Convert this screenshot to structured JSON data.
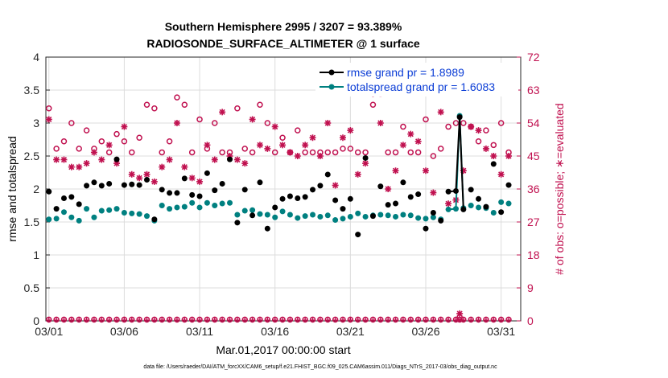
{
  "chart_data": {
    "type": "line",
    "title_line1": "Southern Hemisphere 2995 / 3207 = 93.389%",
    "title_line2": "RADIOSONDE_SURFACE_ALTIMETER @ 1 surface",
    "xlabel": "Mar.01,2017 00:00:00 start",
    "ylabel": "rmse and totalspread",
    "ylabel_right": "# of obs: o=possible; ∗=evaluated",
    "footer": "data file: /Users/raeder/DAI/ATM_forcXX/CAM6_setup/f.e21.FHIST_BGC.f09_025.CAM6assim.011/Diags_NTrS_2017-03/obs_diag_output.nc",
    "xlim": [
      0.8,
      32.3
    ],
    "ylim": [
      0,
      4
    ],
    "ylim_right": [
      0,
      72
    ],
    "x_tick_values": [
      1,
      6,
      11,
      16,
      21,
      26,
      31
    ],
    "x_tick_labels": [
      "03/01",
      "03/06",
      "03/11",
      "03/16",
      "03/21",
      "03/26",
      "03/31"
    ],
    "y_ticks": [
      "0",
      "0.5",
      "1",
      "1.5",
      "2",
      "2.5",
      "3",
      "3.5",
      "4"
    ],
    "y_ticks_right": [
      "0",
      "9",
      "18",
      "27",
      "36",
      "45",
      "54",
      "63",
      "72"
    ],
    "legend": [
      "rmse grand pr = 1.8989",
      "totalspread grand pr = 1.6083"
    ],
    "colors": {
      "rmse": "#000000",
      "spread": "#008080",
      "obs": "#c0104f",
      "legend_text": "#0b3dd6"
    },
    "x": [
      1.0,
      1.5,
      2.0,
      2.5,
      3.0,
      3.5,
      4.0,
      4.5,
      5.0,
      5.5,
      6.0,
      6.5,
      7.0,
      7.5,
      8.0,
      8.5,
      9.0,
      9.5,
      10.0,
      10.5,
      11.0,
      11.5,
      12.0,
      12.5,
      13.0,
      13.5,
      14.0,
      14.5,
      15.0,
      15.5,
      16.0,
      16.5,
      17.0,
      17.5,
      18.0,
      18.5,
      19.0,
      19.5,
      20.0,
      20.5,
      21.0,
      21.5,
      22.0,
      22.5,
      23.0,
      23.5,
      24.0,
      24.5,
      25.0,
      25.5,
      26.0,
      26.5,
      27.0,
      27.5,
      28.0,
      28.25,
      28.5,
      29.0,
      29.5,
      30.0,
      30.5,
      31.0,
      31.5
    ],
    "series": [
      {
        "name": "rmse",
        "values": [
          1.96,
          1.7,
          1.86,
          1.88,
          1.77,
          2.05,
          2.1,
          2.05,
          2.08,
          2.45,
          2.06,
          2.07,
          2.06,
          2.14,
          1.54,
          1.99,
          1.94,
          1.94,
          2.16,
          1.91,
          1.89,
          2.24,
          1.98,
          2.08,
          2.45,
          1.49,
          1.99,
          1.6,
          2.1,
          1.4,
          1.72,
          1.85,
          1.89,
          1.86,
          1.88,
          1.99,
          2.05,
          2.22,
          1.83,
          1.7,
          1.85,
          1.31,
          2.47,
          1.59,
          2.04,
          1.76,
          1.78,
          2.1,
          1.88,
          1.92,
          1.4,
          1.64,
          1.52,
          1.96,
          1.97,
          3.09,
          1.69,
          1.99,
          1.85,
          1.73,
          2.38,
          1.65,
          2.06
        ]
      },
      {
        "name": "totalspread",
        "values": [
          1.54,
          1.55,
          1.65,
          1.57,
          1.52,
          1.7,
          1.57,
          1.67,
          1.68,
          1.7,
          1.64,
          1.63,
          1.62,
          1.59,
          1.52,
          1.75,
          1.7,
          1.72,
          1.73,
          1.79,
          1.72,
          1.79,
          1.75,
          1.78,
          1.79,
          1.61,
          1.67,
          1.68,
          1.62,
          1.61,
          1.57,
          1.66,
          1.61,
          1.56,
          1.59,
          1.61,
          1.58,
          1.6,
          1.53,
          1.55,
          1.58,
          1.63,
          1.58,
          1.6,
          1.61,
          1.6,
          1.58,
          1.61,
          1.6,
          1.56,
          1.55,
          1.57,
          1.54,
          1.69,
          1.7,
          3.11,
          1.71,
          1.75,
          1.72,
          1.71,
          1.64,
          1.8,
          1.78
        ]
      }
    ],
    "obs_possible": [
      58,
      47,
      49,
      54,
      47,
      52,
      47,
      49,
      46,
      51,
      49,
      46,
      50,
      59,
      58,
      46,
      49,
      61,
      59,
      46,
      55,
      47,
      54,
      46,
      46,
      58,
      47,
      46,
      59,
      54,
      46,
      50,
      46,
      52,
      46,
      46,
      46,
      46,
      46,
      47,
      47,
      46,
      46,
      59,
      62,
      46,
      46,
      53,
      46,
      46,
      55,
      45,
      47,
      53,
      54,
      1,
      54,
      53,
      49,
      52,
      48,
      54,
      46
    ],
    "obs_evaluated": [
      55,
      44,
      44,
      42,
      42,
      43,
      46,
      44,
      48,
      43,
      53,
      40,
      39,
      40,
      38,
      42,
      44,
      54,
      42,
      39,
      38,
      48,
      44,
      57,
      45,
      44,
      43,
      55,
      48,
      47,
      53,
      48,
      46,
      45,
      48,
      50,
      45,
      54,
      37,
      50,
      52,
      40,
      43,
      62,
      54,
      36,
      41,
      48,
      51,
      49,
      41,
      35,
      57,
      32,
      33,
      2,
      41,
      53,
      52,
      47,
      45,
      40,
      45
    ]
  }
}
